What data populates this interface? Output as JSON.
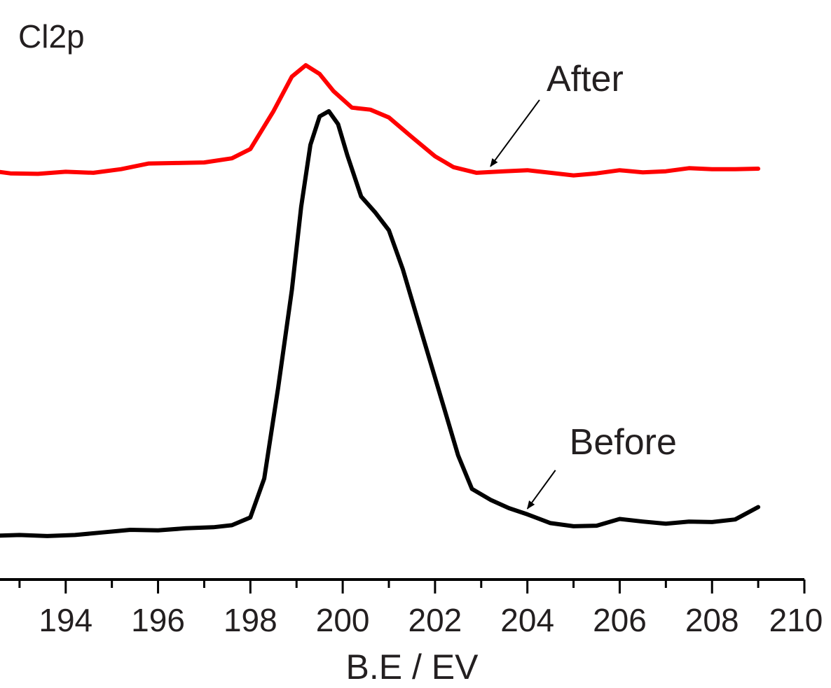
{
  "chart_data": {
    "type": "line",
    "title": "",
    "panel_label": "Cl2p",
    "xlabel": "B.E / EV",
    "ylabel": "",
    "xlim": [
      192,
      210
    ],
    "ylim": [
      0,
      1.12
    ],
    "x_ticks": [
      194,
      196,
      198,
      200,
      202,
      204,
      206,
      208,
      210
    ],
    "y_axis_visible": false,
    "grid": false,
    "legend": "none",
    "series": [
      {
        "name": "After",
        "color": "#ff0000",
        "x": [
          192.2,
          192.8,
          193.4,
          194.0,
          194.6,
          195.2,
          195.8,
          196.4,
          197.0,
          197.6,
          198.0,
          198.5,
          198.9,
          199.2,
          199.5,
          199.8,
          200.2,
          200.6,
          201.0,
          201.5,
          202.0,
          202.4,
          202.9,
          203.5,
          204.0,
          204.5,
          205.0,
          205.5,
          206.0,
          206.5,
          207.0,
          207.5,
          208.0,
          208.5,
          209.0
        ],
        "y": [
          0.792,
          0.785,
          0.784,
          0.788,
          0.786,
          0.793,
          0.804,
          0.805,
          0.806,
          0.814,
          0.832,
          0.905,
          0.972,
          0.994,
          0.977,
          0.944,
          0.912,
          0.908,
          0.893,
          0.855,
          0.818,
          0.797,
          0.786,
          0.789,
          0.791,
          0.786,
          0.781,
          0.785,
          0.791,
          0.787,
          0.789,
          0.795,
          0.793,
          0.793,
          0.794
        ]
      },
      {
        "name": "Before",
        "color": "#000000",
        "x": [
          192.2,
          193.0,
          193.6,
          194.2,
          194.8,
          195.4,
          196.0,
          196.6,
          197.2,
          197.6,
          198.0,
          198.3,
          198.6,
          198.9,
          199.1,
          199.3,
          199.5,
          199.7,
          199.9,
          200.1,
          200.4,
          200.7,
          201.0,
          201.3,
          201.6,
          201.9,
          202.2,
          202.5,
          202.8,
          203.2,
          203.6,
          204.0,
          204.5,
          205.0,
          205.5,
          206.0,
          206.5,
          207.0,
          207.5,
          208.0,
          208.5,
          209.0
        ],
        "y": [
          0.084,
          0.086,
          0.084,
          0.086,
          0.091,
          0.096,
          0.095,
          0.099,
          0.101,
          0.105,
          0.12,
          0.195,
          0.37,
          0.56,
          0.72,
          0.84,
          0.895,
          0.905,
          0.88,
          0.82,
          0.74,
          0.71,
          0.675,
          0.6,
          0.51,
          0.42,
          0.33,
          0.24,
          0.175,
          0.154,
          0.138,
          0.126,
          0.109,
          0.103,
          0.104,
          0.117,
          0.112,
          0.108,
          0.112,
          0.111,
          0.116,
          0.14
        ]
      }
    ],
    "annotations": [
      {
        "text": "After",
        "target_series": "After",
        "target_x": 203.2
      },
      {
        "text": "Before",
        "target_series": "Before",
        "target_x": 204.0
      }
    ]
  }
}
